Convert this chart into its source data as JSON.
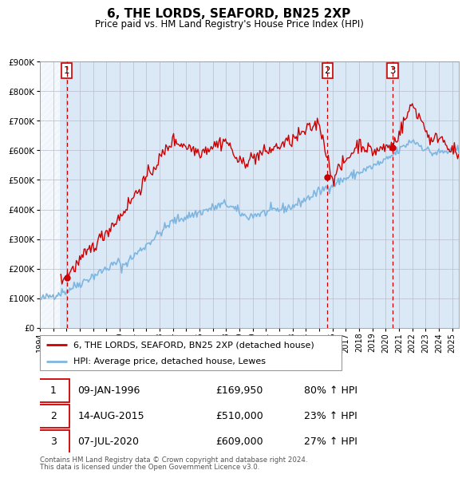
{
  "title": "6, THE LORDS, SEAFORD, BN25 2XP",
  "subtitle": "Price paid vs. HM Land Registry's House Price Index (HPI)",
  "xlim": [
    1994.0,
    2025.5
  ],
  "ylim": [
    0,
    900000
  ],
  "yticks": [
    0,
    100000,
    200000,
    300000,
    400000,
    500000,
    600000,
    700000,
    800000,
    900000
  ],
  "ytick_labels": [
    "£0",
    "£100K",
    "£200K",
    "£300K",
    "£400K",
    "£500K",
    "£600K",
    "£700K",
    "£800K",
    "£900K"
  ],
  "xtick_years": [
    1994,
    1995,
    1996,
    1997,
    1998,
    1999,
    2000,
    2001,
    2002,
    2003,
    2004,
    2005,
    2006,
    2007,
    2008,
    2009,
    2010,
    2011,
    2012,
    2013,
    2014,
    2015,
    2016,
    2017,
    2018,
    2019,
    2020,
    2021,
    2022,
    2023,
    2024,
    2025
  ],
  "hpi_color": "#7EB6E0",
  "price_color": "#CC0000",
  "dashed_line_color": "#CC0000",
  "background_color": "#DBE9F7",
  "grid_color": "#BBBBCC",
  "purchase_dates": [
    1996.03,
    2015.62,
    2020.52
  ],
  "purchase_prices": [
    169950,
    510000,
    609000
  ],
  "purchase_labels": [
    "1",
    "2",
    "3"
  ],
  "purchase_date_strs": [
    "09-JAN-1996",
    "14-AUG-2015",
    "07-JUL-2020"
  ],
  "purchase_price_strs": [
    "£169,950",
    "£510,000",
    "£609,000"
  ],
  "purchase_hpi_strs": [
    "80% ↑ HPI",
    "23% ↑ HPI",
    "27% ↑ HPI"
  ],
  "legend_line1": "6, THE LORDS, SEAFORD, BN25 2XP (detached house)",
  "legend_line2": "HPI: Average price, detached house, Lewes",
  "footer1": "Contains HM Land Registry data © Crown copyright and database right 2024.",
  "footer2": "This data is licensed under the Open Government Licence v3.0."
}
